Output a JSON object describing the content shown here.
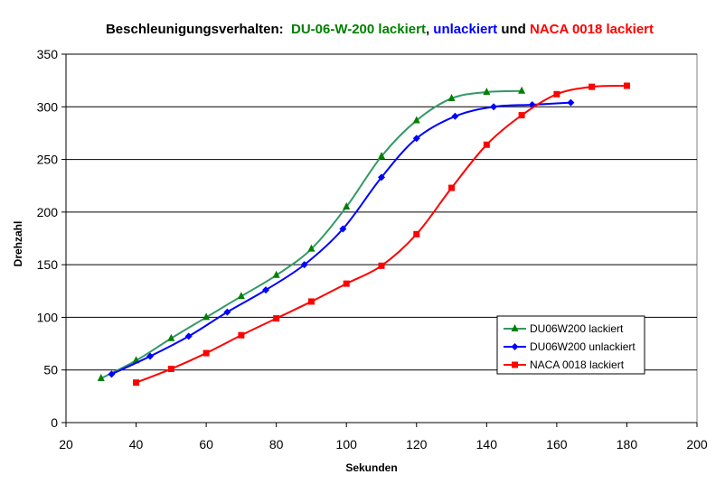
{
  "chart_data": {
    "type": "line",
    "title_parts": [
      {
        "text": "Beschleunigungsverhalten:  ",
        "color": "#000000"
      },
      {
        "text": "DU-06-W-200 lackiert",
        "color": "#008000"
      },
      {
        "text": ", ",
        "color": "#000000"
      },
      {
        "text": "unlackiert",
        "color": "#0000ff"
      },
      {
        "text": " und ",
        "color": "#000000"
      },
      {
        "text": "NACA 0018 lackiert",
        "color": "#ff0000"
      }
    ],
    "xlabel": "Sekunden",
    "ylabel": "Drehzahl",
    "xlim": [
      20,
      200
    ],
    "ylim": [
      0,
      350
    ],
    "xticks": [
      20,
      40,
      60,
      80,
      100,
      120,
      140,
      160,
      180,
      200
    ],
    "yticks": [
      0,
      50,
      100,
      150,
      200,
      250,
      300,
      350
    ],
    "grid": "horizontal",
    "legend_position": "bottom-right",
    "series": [
      {
        "name": "DU06W200 lackiert",
        "color": "#339966",
        "marker_color": "#008000",
        "marker": "triangle",
        "x": [
          30,
          40,
          50,
          60,
          70,
          80,
          90,
          100,
          110,
          120,
          130,
          140,
          150
        ],
        "y": [
          42,
          59,
          80,
          100,
          120,
          140,
          165,
          205,
          253,
          287,
          308,
          314,
          315
        ]
      },
      {
        "name": "DU06W200 unlackiert",
        "color": "#0000ff",
        "marker_color": "#0000ff",
        "marker": "diamond",
        "x": [
          33,
          44,
          55,
          66,
          77,
          88,
          99,
          110,
          120,
          131,
          142,
          153,
          164
        ],
        "y": [
          46,
          63,
          82,
          105,
          126,
          150,
          184,
          233,
          270,
          291,
          300,
          302,
          304
        ]
      },
      {
        "name": "NACA 0018 lackiert",
        "color": "#ff0000",
        "marker_color": "#ff0000",
        "marker": "square",
        "x": [
          40,
          50,
          60,
          70,
          80,
          90,
          100,
          110,
          120,
          130,
          140,
          150,
          160,
          170,
          180
        ],
        "y": [
          38,
          51,
          66,
          83,
          99,
          115,
          132,
          149,
          179,
          223,
          264,
          292,
          312,
          319,
          320
        ]
      }
    ]
  }
}
